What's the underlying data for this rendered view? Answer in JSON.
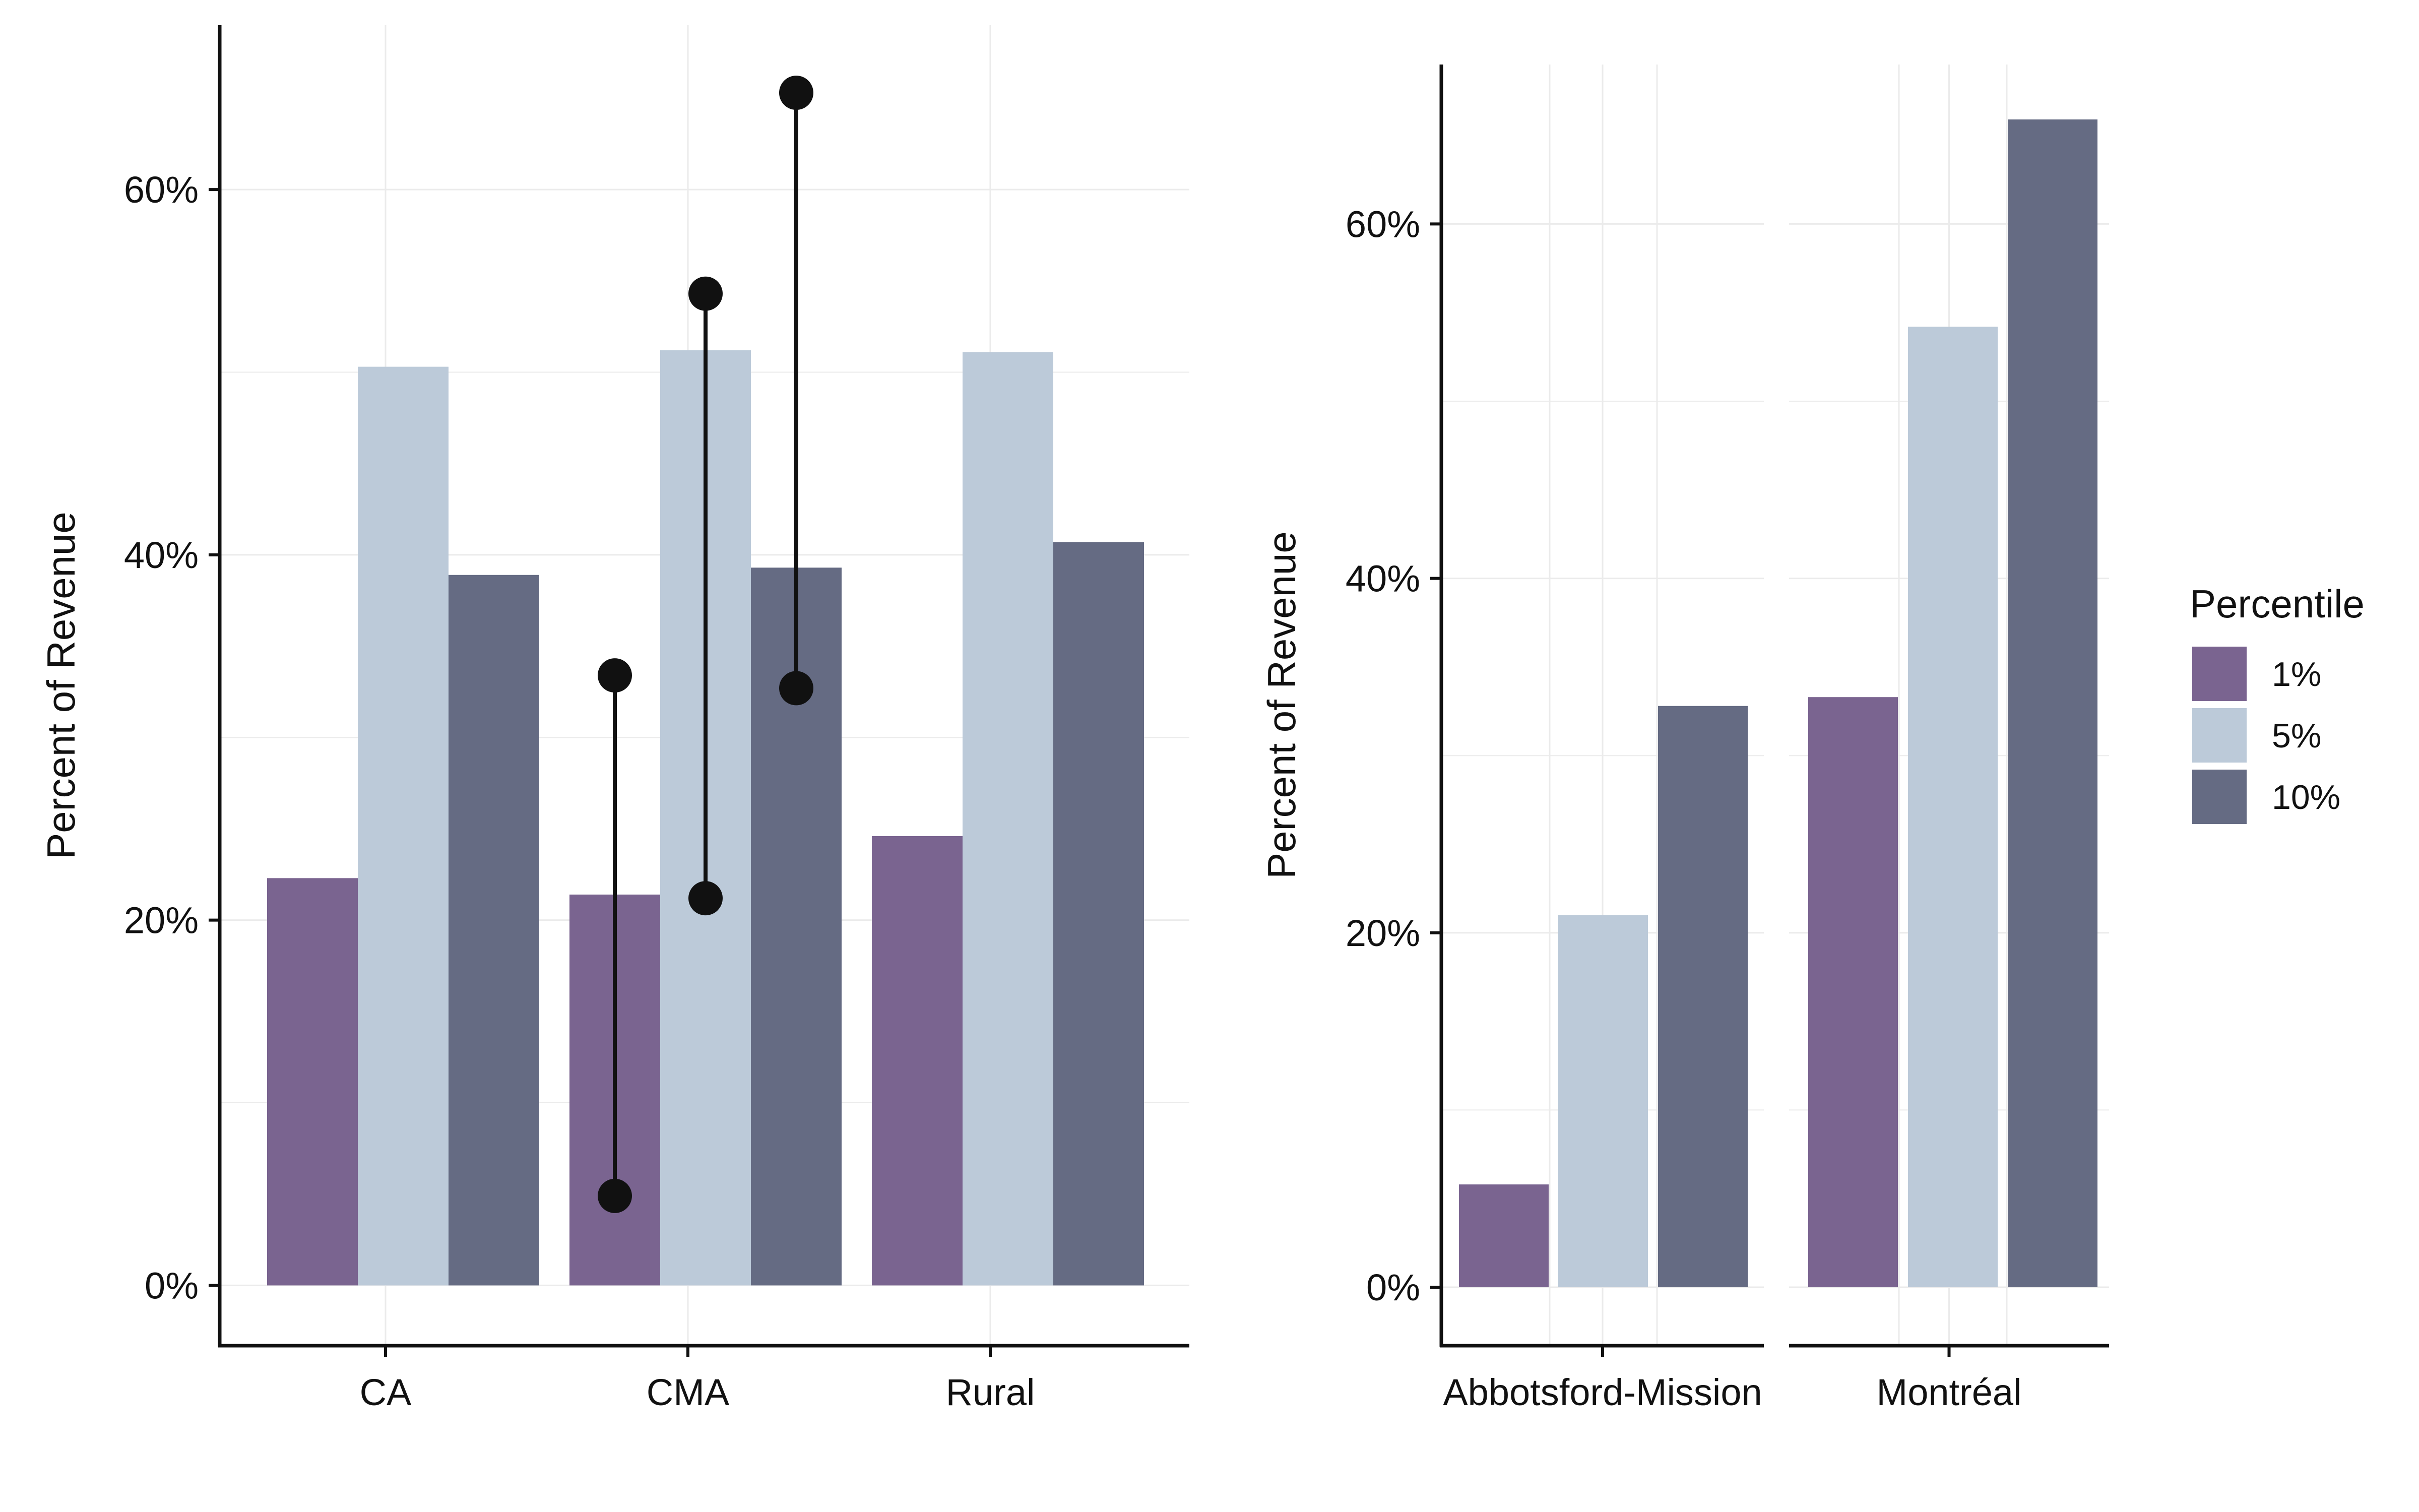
{
  "colors": {
    "p1": "#7a6490",
    "p5": "#bccad9",
    "p10": "#656b83",
    "ink": "#111111",
    "grid": "#ebebeb"
  },
  "legend": {
    "title": "Percentile",
    "entries": [
      {
        "key": "p1",
        "label": "1%"
      },
      {
        "key": "p5",
        "label": "5%"
      },
      {
        "key": "p10",
        "label": "10%"
      }
    ]
  },
  "chart_data": [
    {
      "type": "bar",
      "ylabel": "Percent of Revenue",
      "xlabel": "",
      "ylim": [
        -3.3,
        69
      ],
      "yticks": [
        0,
        20,
        40,
        60
      ],
      "ytick_labels": [
        "0%",
        "20%",
        "40%",
        "60%"
      ],
      "categories": [
        "CA",
        "CMA",
        "Rural"
      ],
      "series": [
        {
          "name": "1%",
          "key": "p1",
          "values": [
            22.3,
            21.4,
            24.6
          ]
        },
        {
          "name": "5%",
          "key": "p5",
          "values": [
            50.3,
            51.2,
            51.1
          ]
        },
        {
          "name": "10%",
          "key": "p10",
          "values": [
            38.9,
            39.3,
            40.7
          ]
        }
      ],
      "ranges": [
        {
          "category": "CMA",
          "series": "1%",
          "low": 4.9,
          "high": 33.4
        },
        {
          "category": "CMA",
          "series": "5%",
          "low": 21.2,
          "high": 54.3
        },
        {
          "category": "CMA",
          "series": "10%",
          "low": 32.7,
          "high": 65.3
        }
      ]
    },
    {
      "type": "bar",
      "ylabel": "Percent of Revenue",
      "xlabel": "",
      "ylim": [
        -3.3,
        69
      ],
      "yticks": [
        0,
        20,
        40,
        60
      ],
      "ytick_labels": [
        "0%",
        "20%",
        "40%",
        "60%"
      ],
      "facets": [
        "Abbotsford-Mission",
        "Montréal"
      ],
      "series": [
        {
          "name": "1%",
          "key": "p1",
          "values": [
            5.8,
            33.3
          ]
        },
        {
          "name": "5%",
          "key": "p5",
          "values": [
            21.0,
            54.2
          ]
        },
        {
          "name": "10%",
          "key": "p10",
          "values": [
            32.8,
            65.9
          ]
        }
      ]
    }
  ]
}
